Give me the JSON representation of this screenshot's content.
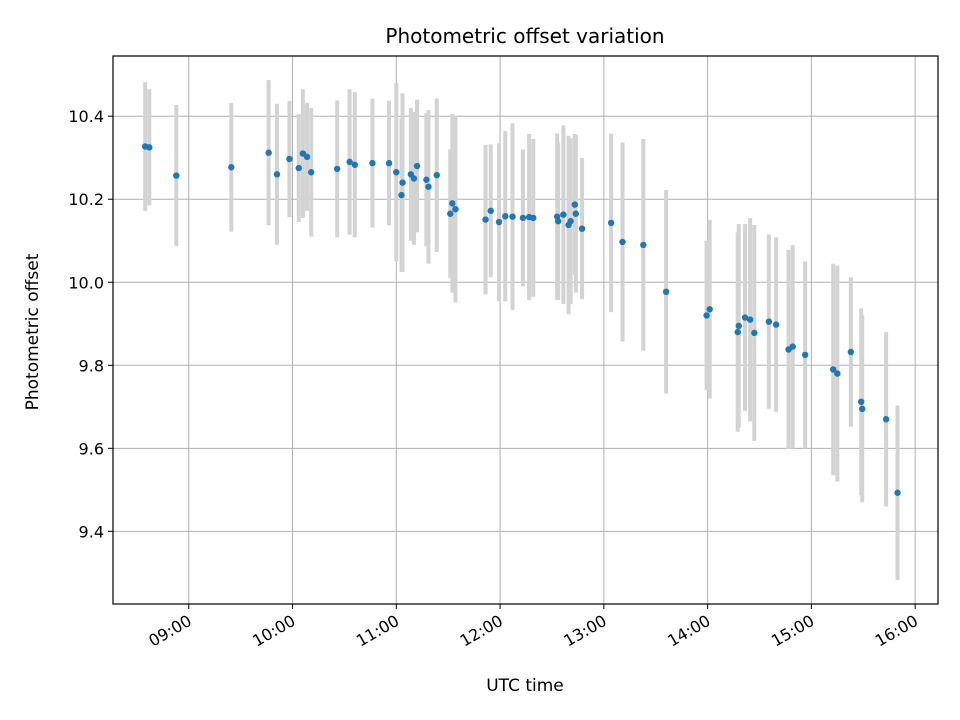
{
  "chart_data": {
    "type": "scatter",
    "title": "Photometric offset variation",
    "xlabel": "UTC time",
    "ylabel": "Photometric offset",
    "xlim": [
      8.27,
      16.22
    ],
    "ylim": [
      9.225,
      10.545
    ],
    "grid": true,
    "x_ticks": [
      {
        "value": 9,
        "label": "09:00"
      },
      {
        "value": 10,
        "label": "10:00"
      },
      {
        "value": 11,
        "label": "11:00"
      },
      {
        "value": 12,
        "label": "12:00"
      },
      {
        "value": 13,
        "label": "13:00"
      },
      {
        "value": 14,
        "label": "14:00"
      },
      {
        "value": 15,
        "label": "15:00"
      },
      {
        "value": 16,
        "label": "16:00"
      }
    ],
    "y_ticks": [
      {
        "value": 9.4,
        "label": "9.4"
      },
      {
        "value": 9.6,
        "label": "9.6"
      },
      {
        "value": 9.8,
        "label": "9.8"
      },
      {
        "value": 10.0,
        "label": "10.0"
      },
      {
        "value": 10.2,
        "label": "10.2"
      },
      {
        "value": 10.4,
        "label": "10.4"
      }
    ],
    "series": [
      {
        "name": "offset",
        "marker_color": "#1f77b4",
        "errorbar_color": "#d3d3d3",
        "x": [
          8.58,
          8.62,
          8.88,
          9.41,
          9.77,
          9.85,
          9.97,
          10.06,
          10.1,
          10.14,
          10.18,
          10.43,
          10.55,
          10.6,
          10.77,
          10.93,
          11.0,
          11.05,
          11.06,
          11.14,
          11.17,
          11.2,
          11.29,
          11.31,
          11.39,
          11.52,
          11.54,
          11.57,
          11.86,
          11.91,
          11.99,
          12.05,
          12.12,
          12.22,
          12.28,
          12.32,
          12.55,
          12.56,
          12.61,
          12.66,
          12.68,
          12.72,
          12.73,
          12.79,
          13.07,
          13.18,
          13.38,
          13.6,
          13.99,
          14.02,
          14.29,
          14.3,
          14.36,
          14.41,
          14.45,
          14.59,
          14.66,
          14.78,
          14.82,
          14.94,
          15.21,
          15.25,
          15.38,
          15.48,
          15.49,
          15.72,
          15.83
        ],
        "y": [
          10.327,
          10.325,
          10.257,
          10.277,
          10.312,
          10.26,
          10.297,
          10.275,
          10.31,
          10.302,
          10.265,
          10.273,
          10.29,
          10.283,
          10.287,
          10.287,
          10.265,
          10.21,
          10.24,
          10.26,
          10.25,
          10.28,
          10.247,
          10.23,
          10.258,
          10.165,
          10.19,
          10.176,
          10.151,
          10.172,
          10.145,
          10.159,
          10.158,
          10.155,
          10.157,
          10.155,
          10.158,
          10.147,
          10.163,
          10.138,
          10.147,
          10.187,
          10.165,
          10.129,
          10.143,
          10.097,
          10.09,
          9.977,
          9.92,
          9.935,
          9.88,
          9.895,
          9.915,
          9.91,
          9.878,
          9.905,
          9.898,
          9.838,
          9.845,
          9.825,
          9.79,
          9.78,
          9.832,
          9.712,
          9.695,
          9.67,
          9.493
        ],
        "err": [
          0.155,
          0.14,
          0.17,
          0.155,
          0.175,
          0.17,
          0.14,
          0.13,
          0.155,
          0.13,
          0.155,
          0.165,
          0.175,
          0.175,
          0.155,
          0.15,
          0.215,
          0.185,
          0.215,
          0.16,
          0.16,
          0.16,
          0.16,
          0.185,
          0.185,
          0.155,
          0.215,
          0.225,
          0.18,
          0.16,
          0.19,
          0.205,
          0.225,
          0.165,
          0.2,
          0.19,
          0.2,
          0.19,
          0.215,
          0.215,
          0.2,
          0.17,
          0.19,
          0.17,
          0.215,
          0.24,
          0.255,
          0.245,
          0.18,
          0.215,
          0.24,
          0.245,
          0.225,
          0.245,
          0.26,
          0.21,
          0.21,
          0.24,
          0.245,
          0.225,
          0.255,
          0.26,
          0.18,
          0.225,
          0.225,
          0.21,
          0.21
        ]
      }
    ]
  }
}
